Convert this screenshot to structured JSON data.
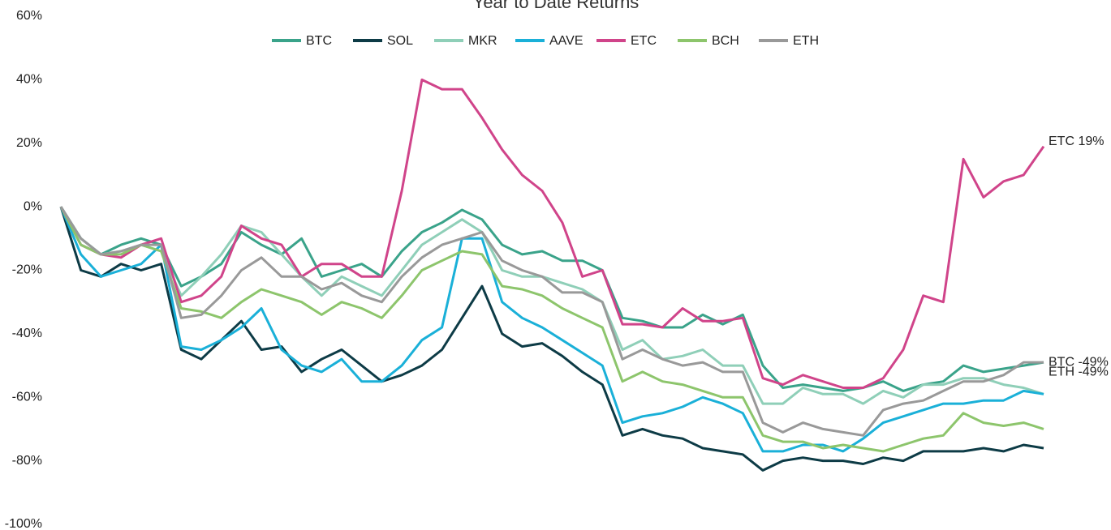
{
  "chart_data": {
    "type": "line",
    "title": "Year to Date Returns",
    "ylim": [
      -100,
      60
    ],
    "yticks": [
      {
        "value": -100,
        "label": "-100%"
      },
      {
        "value": -80,
        "label": "-80%"
      },
      {
        "value": -60,
        "label": "-60%"
      },
      {
        "value": -40,
        "label": "-40%"
      },
      {
        "value": -20,
        "label": "-20%"
      },
      {
        "value": 0,
        "label": "0%"
      },
      {
        "value": 20,
        "label": "20%"
      },
      {
        "value": 40,
        "label": "40%"
      },
      {
        "value": 60,
        "label": "60%"
      }
    ],
    "grid": false,
    "legend": "top",
    "series": [
      {
        "name": "BTC",
        "color": "#3aa38a",
        "end_label": "BTC -49%",
        "values": [
          0,
          -10,
          -15,
          -12,
          -10,
          -12,
          -25,
          -22,
          -18,
          -8,
          -12,
          -15,
          -10,
          -22,
          -20,
          -18,
          -22,
          -14,
          -8,
          -5,
          -1,
          -4,
          -12,
          -15,
          -14,
          -17,
          -17,
          -20,
          -35,
          -36,
          -38,
          -38,
          -34,
          -37,
          -34,
          -50,
          -57,
          -56,
          -57,
          -58,
          -57,
          -55,
          -58,
          -56,
          -55,
          -50,
          -52,
          -51,
          -50,
          -49
        ]
      },
      {
        "name": "SOL",
        "color": "#0d3b46",
        "values": [
          0,
          -20,
          -22,
          -18,
          -20,
          -18,
          -45,
          -48,
          -42,
          -36,
          -45,
          -44,
          -52,
          -48,
          -45,
          -50,
          -55,
          -53,
          -50,
          -45,
          -35,
          -25,
          -40,
          -44,
          -43,
          -47,
          -52,
          -56,
          -72,
          -70,
          -72,
          -73,
          -76,
          -77,
          -78,
          -83,
          -80,
          -79,
          -80,
          -80,
          -81,
          -79,
          -80,
          -77,
          -77,
          -77,
          -76,
          -77,
          -75,
          -76
        ]
      },
      {
        "name": "MKR",
        "color": "#8fcfb8",
        "values": [
          0,
          -12,
          -15,
          -14,
          -12,
          -14,
          -28,
          -22,
          -15,
          -6,
          -8,
          -15,
          -22,
          -28,
          -22,
          -25,
          -28,
          -20,
          -12,
          -8,
          -4,
          -8,
          -20,
          -22,
          -22,
          -24,
          -26,
          -30,
          -45,
          -42,
          -48,
          -47,
          -45,
          -50,
          -50,
          -62,
          -62,
          -57,
          -59,
          -59,
          -62,
          -58,
          -60,
          -56,
          -56,
          -54,
          -54,
          -56,
          -57,
          -59
        ]
      },
      {
        "name": "AAVE",
        "color": "#1ab0d8",
        "values": [
          0,
          -15,
          -22,
          -20,
          -18,
          -12,
          -44,
          -45,
          -42,
          -38,
          -32,
          -45,
          -50,
          -52,
          -48,
          -55,
          -55,
          -50,
          -42,
          -38,
          -10,
          -10,
          -30,
          -35,
          -38,
          -42,
          -46,
          -50,
          -68,
          -66,
          -65,
          -63,
          -60,
          -62,
          -65,
          -77,
          -77,
          -75,
          -75,
          -77,
          -73,
          -68,
          -66,
          -64,
          -62,
          -62,
          -61,
          -61,
          -58,
          -59
        ]
      },
      {
        "name": "ETC",
        "color": "#d0448a",
        "end_label": "ETC 19%",
        "values": [
          0,
          -12,
          -15,
          -16,
          -12,
          -10,
          -30,
          -28,
          -22,
          -6,
          -10,
          -12,
          -22,
          -18,
          -18,
          -22,
          -22,
          5,
          40,
          37,
          37,
          28,
          18,
          10,
          5,
          -5,
          -22,
          -20,
          -37,
          -37,
          -38,
          -32,
          -36,
          -36,
          -35,
          -54,
          -56,
          -53,
          -55,
          -57,
          -57,
          -54,
          -45,
          -28,
          -30,
          15,
          3,
          8,
          10,
          19
        ]
      },
      {
        "name": "BCH",
        "color": "#8dc56c",
        "values": [
          0,
          -12,
          -15,
          -15,
          -12,
          -14,
          -32,
          -33,
          -35,
          -30,
          -26,
          -28,
          -30,
          -34,
          -30,
          -32,
          -35,
          -28,
          -20,
          -17,
          -14,
          -15,
          -25,
          -26,
          -28,
          -32,
          -35,
          -38,
          -55,
          -52,
          -55,
          -56,
          -58,
          -60,
          -60,
          -72,
          -74,
          -74,
          -76,
          -75,
          -76,
          -77,
          -75,
          -73,
          -72,
          -65,
          -68,
          -69,
          -68,
          -70
        ]
      },
      {
        "name": "ETH",
        "color": "#999999",
        "end_label": "ETH -49%",
        "values": [
          0,
          -10,
          -15,
          -14,
          -12,
          -12,
          -35,
          -34,
          -28,
          -20,
          -16,
          -22,
          -22,
          -26,
          -24,
          -28,
          -30,
          -22,
          -16,
          -12,
          -10,
          -8,
          -17,
          -20,
          -22,
          -27,
          -27,
          -30,
          -48,
          -45,
          -48,
          -50,
          -49,
          -52,
          -52,
          -68,
          -71,
          -68,
          -70,
          -71,
          -72,
          -64,
          -62,
          -61,
          -58,
          -55,
          -55,
          -53,
          -49,
          -49
        ]
      }
    ]
  }
}
